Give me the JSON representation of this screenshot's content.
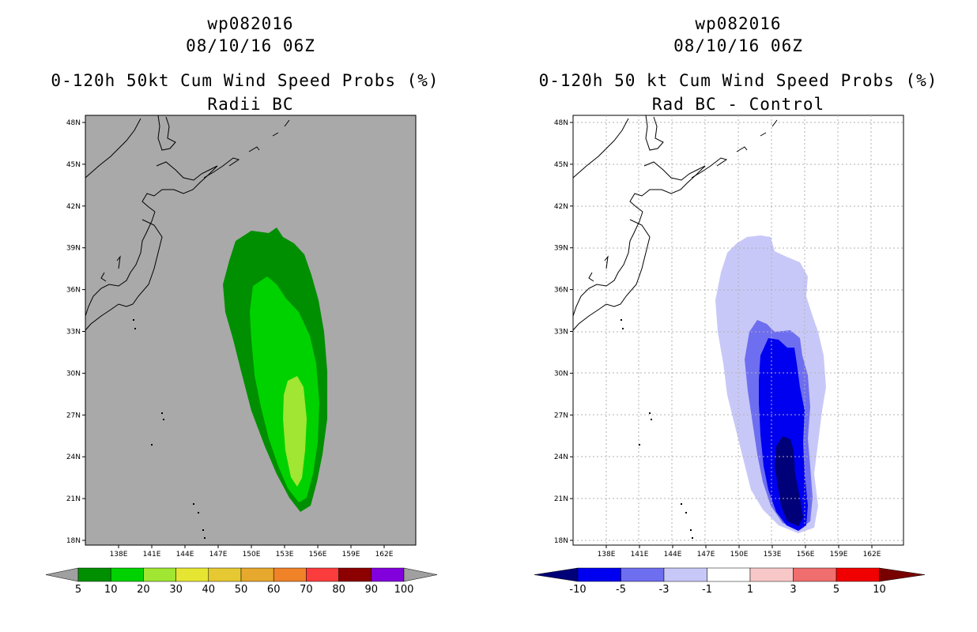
{
  "left_panel": {
    "storm_id": "wp082016",
    "datetime": "08/10/16 06Z",
    "title": "0-120h 50kt Cum Wind Speed Probs (%)",
    "subtitle": "Radii BC",
    "lat_labels": [
      "48N",
      "45N",
      "42N",
      "39N",
      "36N",
      "33N",
      "30N",
      "27N",
      "24N",
      "21N",
      "18N"
    ],
    "lon_labels": [
      "138E",
      "141E",
      "144E",
      "147E",
      "150E",
      "153E",
      "156E",
      "159E",
      "162E"
    ],
    "colorbar": {
      "colors": [
        "#008f00",
        "#00d200",
        "#a0e632",
        "#e6e632",
        "#e6c832",
        "#e6a82d",
        "#f08228",
        "#fa3c3c",
        "#8c0000",
        "#8200dc"
      ],
      "tick_labels": [
        "5",
        "10",
        "20",
        "30",
        "40",
        "50",
        "60",
        "70",
        "80",
        "90",
        "100"
      ],
      "end_color": "#a0a0a0"
    },
    "background_color": "#a9a9a9"
  },
  "right_panel": {
    "storm_id": "wp082016",
    "datetime": "08/10/16 06Z",
    "title": "0-120h 50 kt Cum Wind Speed Probs (%)",
    "subtitle": "Rad BC - Control",
    "lat_labels": [
      "48N",
      "45N",
      "42N",
      "39N",
      "36N",
      "33N",
      "30N",
      "27N",
      "24N",
      "21N",
      "18N"
    ],
    "lon_labels": [
      "138E",
      "141E",
      "144E",
      "147E",
      "150E",
      "153E",
      "156E",
      "159E",
      "162E"
    ],
    "colorbar": {
      "colors": [
        "#0000f0",
        "#6e6ef0",
        "#c8c8f8",
        "#ffffff",
        "#f8c8c8",
        "#f06e6e",
        "#f00000"
      ],
      "left_end_color": "#000078",
      "right_end_color": "#780000",
      "tick_labels": [
        "-10",
        "-5",
        "-3",
        "-1",
        "1",
        "3",
        "5",
        "10"
      ]
    }
  }
}
